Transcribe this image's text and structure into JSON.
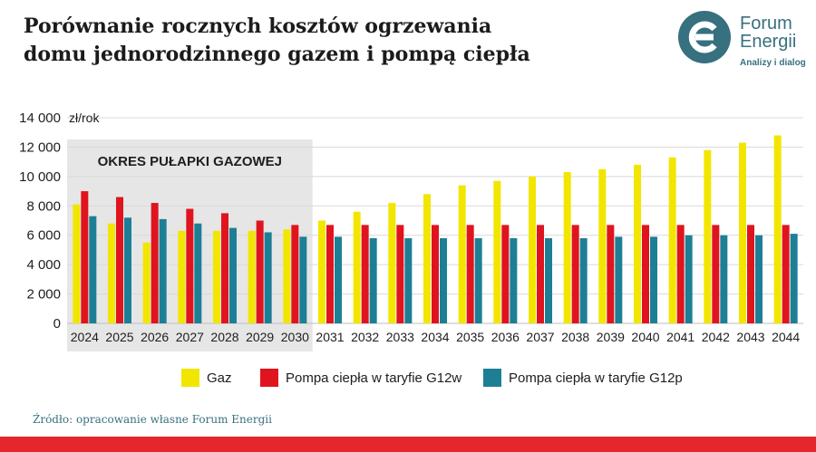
{
  "header": {
    "title_line1": "Porównanie rocznych kosztów ogrzewania",
    "title_line2": "domu jednorodzinnego gazem i pompą ciepła"
  },
  "logo": {
    "icon": "forum-energii-e-logo-icon",
    "name_line1": "Forum",
    "name_line2": "Energii",
    "tagline": "Analizy i dialog",
    "color": "#37707f"
  },
  "source": "Źródło: opracowanie własne Forum Energii",
  "colors": {
    "gaz": "#f2e600",
    "g12w": "#e0141e",
    "g12p": "#1d7f95",
    "shade": "#e6e6e6",
    "bottom_bar": "#e5262a"
  },
  "chart_data": {
    "type": "bar",
    "ylabel": "zł/rok",
    "ylim": [
      0,
      14000
    ],
    "yticks": [
      0,
      2000,
      4000,
      6000,
      8000,
      10000,
      12000,
      14000
    ],
    "ytick_labels": [
      "0",
      "2 000",
      "4 000",
      "6 000",
      "8 000",
      "10 000",
      "12 000",
      "14 000"
    ],
    "grid": true,
    "legend_position": "bottom-center",
    "shaded_region": {
      "label": "OKRES PUŁAPKI GAZOWEJ",
      "from": "2024",
      "to": "2030"
    },
    "categories": [
      "2024",
      "2025",
      "2026",
      "2027",
      "2028",
      "2029",
      "2030",
      "2031",
      "2032",
      "2033",
      "2034",
      "2035",
      "2036",
      "2037",
      "2038",
      "2039",
      "2040",
      "2041",
      "2042",
      "2043",
      "2044"
    ],
    "series": [
      {
        "name": "Gaz",
        "color": "#f2e600",
        "values": [
          8100,
          6800,
          5500,
          6300,
          6300,
          6300,
          6400,
          7000,
          7600,
          8200,
          8800,
          9400,
          9700,
          10000,
          10300,
          10500,
          10800,
          11300,
          11800,
          12300,
          12800
        ]
      },
      {
        "name": "Pompa ciepła w taryfie G12w",
        "color": "#e0141e",
        "values": [
          9000,
          8600,
          8200,
          7800,
          7500,
          7000,
          6700,
          6700,
          6700,
          6700,
          6700,
          6700,
          6700,
          6700,
          6700,
          6700,
          6700,
          6700,
          6700,
          6700,
          6700
        ]
      },
      {
        "name": "Pompa ciepła w taryfie G12p",
        "color": "#1d7f95",
        "values": [
          7300,
          7200,
          7100,
          6800,
          6500,
          6200,
          5900,
          5900,
          5800,
          5800,
          5800,
          5800,
          5800,
          5800,
          5800,
          5900,
          5900,
          6000,
          6000,
          6000,
          6100
        ]
      }
    ]
  }
}
